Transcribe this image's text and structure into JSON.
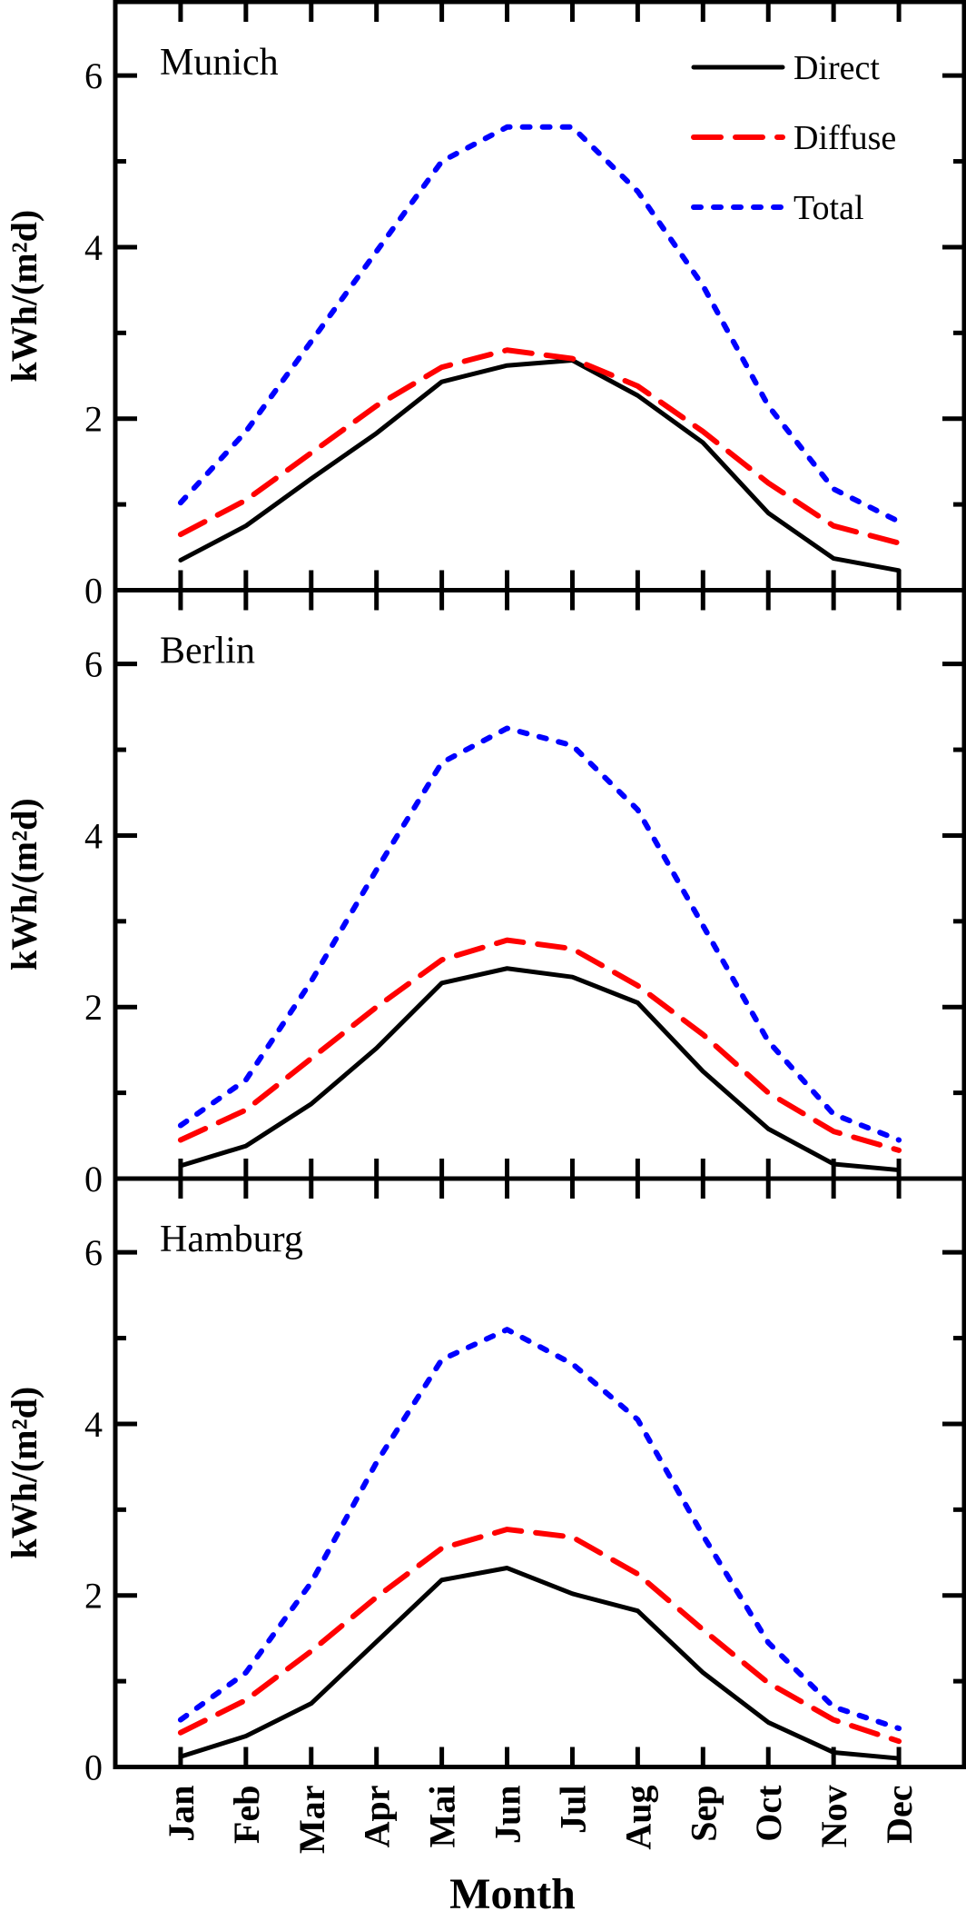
{
  "chart_data": [
    {
      "type": "line",
      "title": "Munich",
      "categories": [
        "Jan",
        "Feb",
        "Mar",
        "Apr",
        "Mai",
        "Jun",
        "Jul",
        "Aug",
        "Sep",
        "Oct",
        "Nov",
        "Dec"
      ],
      "ylabel": "kWh/(m²d)",
      "ylim": [
        0,
        6.86
      ],
      "yticks": [
        "0",
        "2",
        "4",
        "6"
      ],
      "legend": "top-right",
      "series": [
        {
          "name": "Direct",
          "color": "#000000",
          "style": "solid",
          "values": [
            0.35,
            0.75,
            1.3,
            1.83,
            2.43,
            2.62,
            2.68,
            2.27,
            1.72,
            0.9,
            0.37,
            0.23
          ]
        },
        {
          "name": "Diffuse",
          "color": "#ff0000",
          "style": "dashed",
          "values": [
            0.65,
            1.05,
            1.6,
            2.15,
            2.6,
            2.8,
            2.7,
            2.38,
            1.85,
            1.25,
            0.75,
            0.55
          ]
        },
        {
          "name": "Total",
          "color": "#0000ff",
          "style": "dotted",
          "values": [
            1.02,
            1.85,
            2.9,
            3.95,
            5.0,
            5.4,
            5.4,
            4.65,
            3.55,
            2.15,
            1.18,
            0.8
          ]
        }
      ]
    },
    {
      "type": "line",
      "title": "Berlin",
      "categories": [
        "Jan",
        "Feb",
        "Mar",
        "Apr",
        "Mai",
        "Jun",
        "Jul",
        "Aug",
        "Sep",
        "Oct",
        "Nov",
        "Dec"
      ],
      "ylabel": "kWh/(m²d)",
      "ylim": [
        0,
        6.86
      ],
      "yticks": [
        "0",
        "2",
        "4",
        "6"
      ],
      "series": [
        {
          "color": "#000000",
          "style": "solid",
          "values": [
            0.15,
            0.38,
            0.87,
            1.52,
            2.28,
            2.45,
            2.35,
            2.05,
            1.25,
            0.58,
            0.17,
            0.1
          ]
        },
        {
          "color": "#ff0000",
          "style": "dashed",
          "values": [
            0.45,
            0.8,
            1.4,
            2.0,
            2.55,
            2.78,
            2.68,
            2.25,
            1.68,
            1.0,
            0.55,
            0.33
          ]
        },
        {
          "color": "#0000ff",
          "style": "dotted",
          "values": [
            0.62,
            1.15,
            2.3,
            3.6,
            4.85,
            5.25,
            5.05,
            4.3,
            2.95,
            1.6,
            0.75,
            0.45
          ]
        }
      ]
    },
    {
      "type": "line",
      "title": "Hamburg",
      "categories": [
        "Jan",
        "Feb",
        "Mar",
        "Apr",
        "Mai",
        "Jun",
        "Jul",
        "Aug",
        "Sep",
        "Oct",
        "Nov",
        "Dec"
      ],
      "xlabel": "Month",
      "ylabel": "kWh/(m²d)",
      "ylim": [
        0,
        6.86
      ],
      "yticks": [
        "0",
        "2",
        "4",
        "6"
      ],
      "series": [
        {
          "color": "#000000",
          "style": "solid",
          "values": [
            0.12,
            0.36,
            0.74,
            1.46,
            2.18,
            2.32,
            2.02,
            1.82,
            1.1,
            0.52,
            0.17,
            0.1
          ]
        },
        {
          "color": "#ff0000",
          "style": "dashed",
          "values": [
            0.4,
            0.78,
            1.35,
            1.98,
            2.55,
            2.77,
            2.68,
            2.25,
            1.6,
            0.98,
            0.55,
            0.3
          ]
        },
        {
          "color": "#0000ff",
          "style": "dotted",
          "values": [
            0.55,
            1.1,
            2.15,
            3.55,
            4.75,
            5.1,
            4.7,
            4.05,
            2.7,
            1.45,
            0.7,
            0.45
          ]
        }
      ]
    }
  ]
}
